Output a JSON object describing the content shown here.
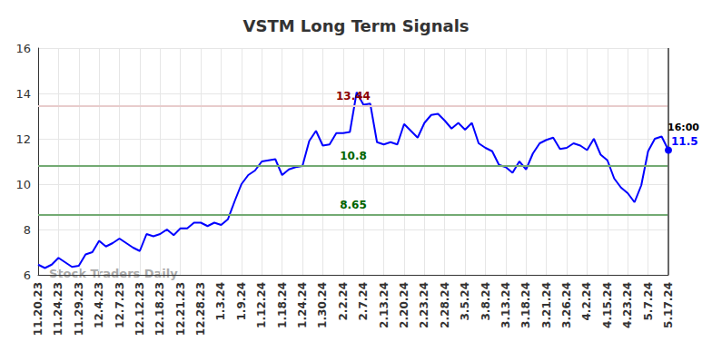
{
  "chart_data": {
    "type": "line",
    "title": "VSTM Long Term Signals",
    "watermark": "Stock Traders Daily",
    "color": "#0000ff",
    "grid": true,
    "ylim": [
      6,
      16
    ],
    "yticks": [
      6,
      8,
      10,
      12,
      14,
      16
    ],
    "categories": [
      "11.20.23",
      null,
      null,
      "11.24.23",
      null,
      null,
      "11.29.23",
      null,
      null,
      "12.4.23",
      null,
      null,
      "12.7.23",
      null,
      null,
      "12.12.23",
      null,
      null,
      "12.18.23",
      null,
      null,
      "12.21.23",
      null,
      null,
      "12.28.23",
      null,
      null,
      "1.3.24",
      null,
      null,
      "1.9.24",
      null,
      null,
      "1.12.24",
      null,
      null,
      "1.18.24",
      null,
      null,
      "1.24.24",
      null,
      null,
      "1.30.24",
      null,
      null,
      "2.2.24",
      null,
      null,
      "2.7.24",
      null,
      null,
      "2.13.24",
      null,
      null,
      "2.20.24",
      null,
      null,
      "2.23.24",
      null,
      null,
      "2.28.24",
      null,
      null,
      "3.5.24",
      null,
      null,
      "3.8.24",
      null,
      null,
      "3.13.24",
      null,
      null,
      "3.18.24",
      null,
      null,
      "3.21.24",
      null,
      null,
      "3.26.24",
      null,
      null,
      "4.2.24",
      null,
      null,
      "4.15.24",
      null,
      null,
      "4.23.24",
      null,
      null,
      "5.7.24",
      null,
      null,
      "5.17.24"
    ],
    "values": [
      6.45,
      6.3,
      6.45,
      6.75,
      6.55,
      6.35,
      6.4,
      6.9,
      7.0,
      7.5,
      7.25,
      7.4,
      7.6,
      7.4,
      7.2,
      7.05,
      7.8,
      7.7,
      7.8,
      8.0,
      7.75,
      8.05,
      8.05,
      8.3,
      8.3,
      8.15,
      8.3,
      8.2,
      8.45,
      9.25,
      10.0,
      10.4,
      10.6,
      11.0,
      11.05,
      11.1,
      10.4,
      10.65,
      10.75,
      10.8,
      11.9,
      12.35,
      11.7,
      11.75,
      12.25,
      12.25,
      12.3,
      14.05,
      13.5,
      13.55,
      11.85,
      11.75,
      11.85,
      11.75,
      12.65,
      12.35,
      12.05,
      12.7,
      13.05,
      13.1,
      12.8,
      12.45,
      12.7,
      12.4,
      12.7,
      11.8,
      11.6,
      11.45,
      10.85,
      10.75,
      10.5,
      11.0,
      10.65,
      11.35,
      11.8,
      11.95,
      12.05,
      11.55,
      11.6,
      11.8,
      11.7,
      11.5,
      12.0,
      11.3,
      11.05,
      10.25,
      9.85,
      9.6,
      9.2,
      9.95,
      11.45,
      12.0,
      12.1,
      11.5
    ],
    "levels": [
      {
        "value": 13.44,
        "color": "#8b0000"
      },
      {
        "value": 10.8,
        "color": "#006400"
      },
      {
        "value": 8.65,
        "color": "#006400"
      }
    ],
    "last_label": {
      "text": "16:00",
      "value": 11.5
    }
  }
}
